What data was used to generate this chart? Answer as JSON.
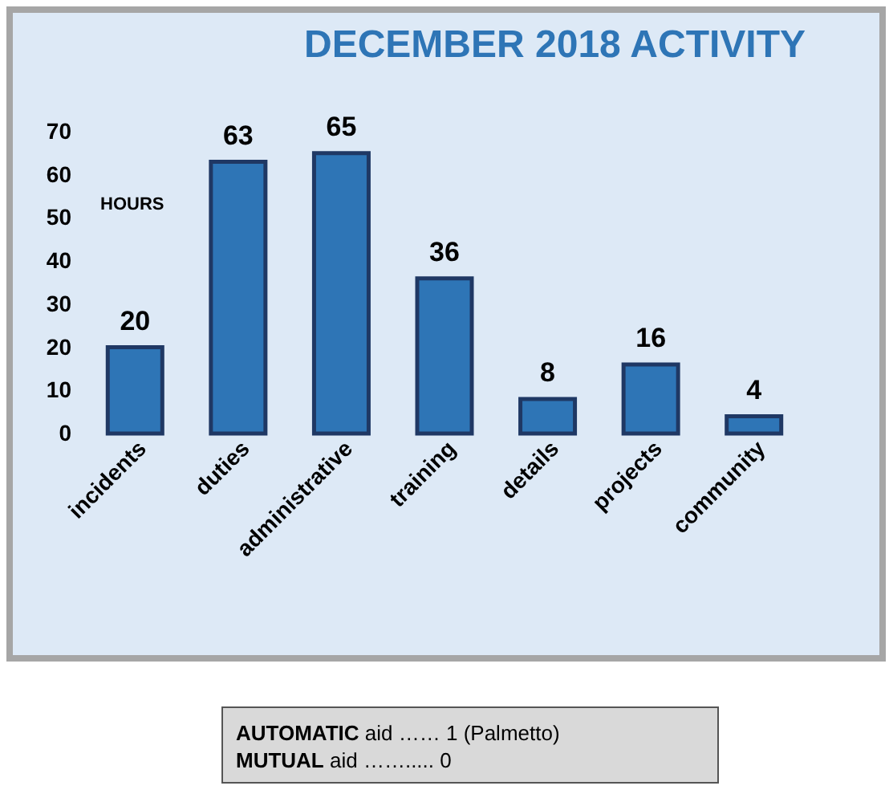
{
  "chart_data": {
    "type": "bar",
    "title": "DECEMBER 2018 ACTIVITY",
    "ylabel": "HOURS",
    "categories": [
      "incidents",
      "duties",
      "administrative",
      "training",
      "details",
      "projects",
      "community"
    ],
    "values": [
      20,
      63,
      65,
      36,
      8,
      16,
      4
    ],
    "color": "#2e75b6",
    "ylim": [
      0,
      70
    ],
    "yticks": [
      0,
      10,
      20,
      30,
      40,
      50,
      60,
      70
    ],
    "grid": false,
    "data_labels": true,
    "annotations": [
      "AUTOMATIC aid …… 1 (Palmetto)",
      "MUTUAL aid ……..... 0"
    ]
  }
}
